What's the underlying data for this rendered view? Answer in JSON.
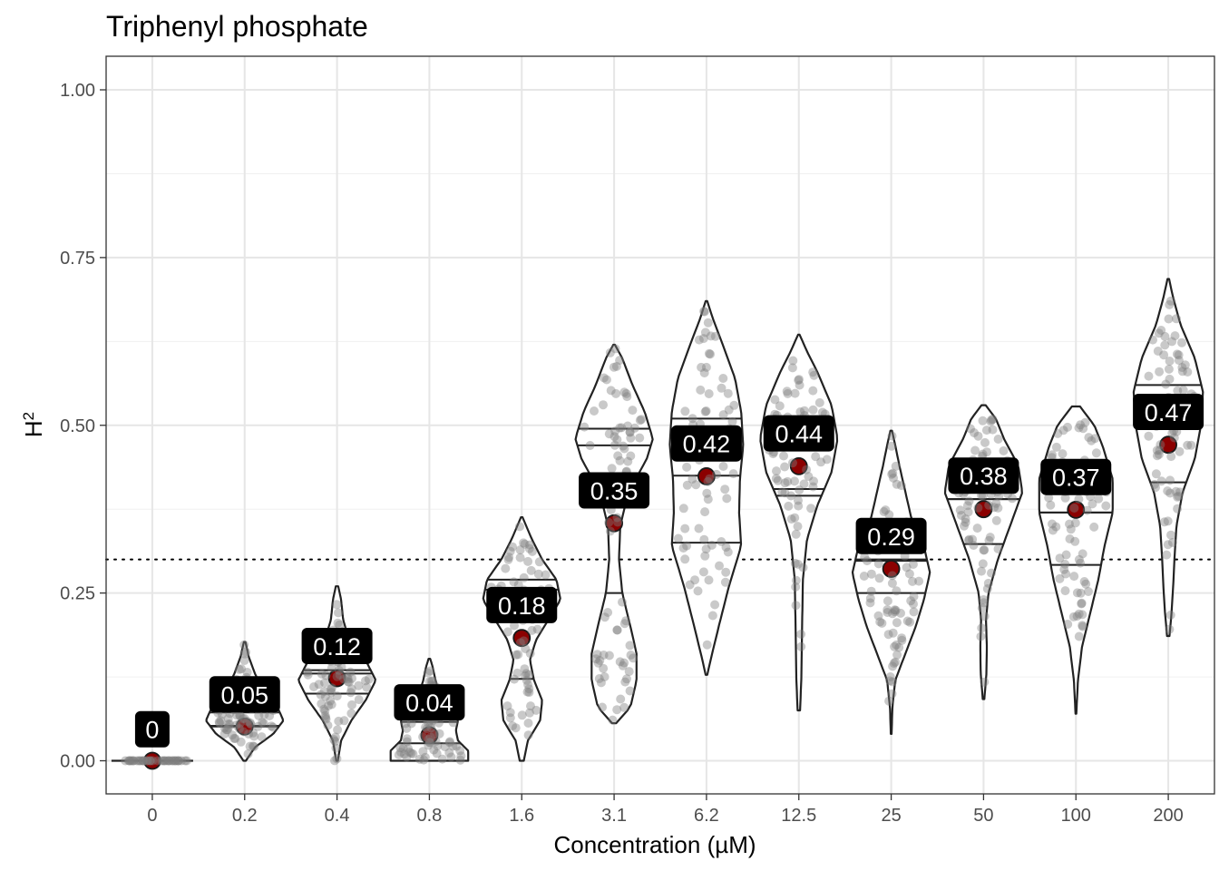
{
  "chart_data": {
    "type": "violin",
    "title": "Triphenyl phosphate",
    "xlabel": "Concentration (µM)",
    "ylabel_base": "H",
    "ylabel_sup": "2",
    "ylim": [
      -0.05,
      1.05
    ],
    "yticks": [
      0,
      0.25,
      0.5,
      0.75,
      1.0
    ],
    "ytick_labels": [
      "0.00",
      "0.25",
      "0.50",
      "0.75",
      "1.00"
    ],
    "threshold": 0.3,
    "categories": [
      "0",
      "0.2",
      "0.4",
      "0.8",
      "1.6",
      "3.1",
      "6.2",
      "12.5",
      "25",
      "50",
      "100",
      "200"
    ],
    "series": [
      {
        "name": "0",
        "min": 0,
        "max": 0,
        "q1": 0,
        "median": 0,
        "q3": 0,
        "mean": 0,
        "label": "0",
        "label_at": 0.047,
        "profile": [
          [
            0,
            1.0
          ]
        ]
      },
      {
        "name": "0.2",
        "min": 0.0,
        "max": 0.177,
        "q1": 0.051,
        "median": 0.052,
        "q3": 0.072,
        "mean": 0.051,
        "label": "0.05",
        "label_at": 0.099,
        "profile": [
          [
            0.0,
            0.03
          ],
          [
            0.02,
            0.25
          ],
          [
            0.04,
            0.7
          ],
          [
            0.06,
            0.95
          ],
          [
            0.08,
            0.8
          ],
          [
            0.1,
            0.5
          ],
          [
            0.13,
            0.25
          ],
          [
            0.155,
            0.1
          ],
          [
            0.177,
            0.02
          ]
        ]
      },
      {
        "name": "0.4",
        "min": 0.0,
        "max": 0.26,
        "q1": 0.1,
        "median": 0.13,
        "q3": 0.135,
        "mean": 0.123,
        "label": "0.12",
        "label_at": 0.171,
        "profile": [
          [
            0.0,
            0.02
          ],
          [
            0.03,
            0.1
          ],
          [
            0.06,
            0.35
          ],
          [
            0.09,
            0.7
          ],
          [
            0.12,
            0.95
          ],
          [
            0.15,
            0.7
          ],
          [
            0.18,
            0.3
          ],
          [
            0.21,
            0.15
          ],
          [
            0.24,
            0.1
          ],
          [
            0.26,
            0.03
          ]
        ]
      },
      {
        "name": "0.8",
        "min": 0.0,
        "max": 0.152,
        "q1": 0.0,
        "median": 0.026,
        "q3": 0.058,
        "mean": 0.038,
        "label": "0.04",
        "label_at": 0.087,
        "profile": [
          [
            0.0,
            0.95
          ],
          [
            0.015,
            0.95
          ],
          [
            0.03,
            0.7
          ],
          [
            0.045,
            0.65
          ],
          [
            0.06,
            0.7
          ],
          [
            0.08,
            0.5
          ],
          [
            0.1,
            0.25
          ],
          [
            0.12,
            0.15
          ],
          [
            0.14,
            0.08
          ],
          [
            0.152,
            0.02
          ]
        ]
      },
      {
        "name": "1.6",
        "min": 0.0,
        "max": 0.363,
        "q1": 0.122,
        "median": 0.255,
        "q3": 0.27,
        "mean": 0.183,
        "label": "0.18",
        "label_at": 0.232,
        "profile": [
          [
            0.0,
            0.05
          ],
          [
            0.03,
            0.15
          ],
          [
            0.06,
            0.45
          ],
          [
            0.09,
            0.5
          ],
          [
            0.12,
            0.3
          ],
          [
            0.15,
            0.2
          ],
          [
            0.18,
            0.35
          ],
          [
            0.21,
            0.65
          ],
          [
            0.24,
            0.95
          ],
          [
            0.27,
            0.85
          ],
          [
            0.3,
            0.5
          ],
          [
            0.33,
            0.25
          ],
          [
            0.363,
            0.02
          ]
        ]
      },
      {
        "name": "3.1",
        "min": 0.056,
        "max": 0.62,
        "q1": 0.25,
        "median": 0.47,
        "q3": 0.495,
        "mean": 0.354,
        "label": "0.35",
        "label_at": 0.403,
        "profile": [
          [
            0.056,
            0.05
          ],
          [
            0.08,
            0.4
          ],
          [
            0.12,
            0.55
          ],
          [
            0.16,
            0.55
          ],
          [
            0.2,
            0.4
          ],
          [
            0.25,
            0.2
          ],
          [
            0.3,
            0.12
          ],
          [
            0.35,
            0.15
          ],
          [
            0.4,
            0.35
          ],
          [
            0.45,
            0.8
          ],
          [
            0.48,
            0.95
          ],
          [
            0.52,
            0.75
          ],
          [
            0.56,
            0.45
          ],
          [
            0.6,
            0.2
          ],
          [
            0.62,
            0.02
          ]
        ]
      },
      {
        "name": "6.2",
        "min": 0.128,
        "max": 0.685,
        "q1": 0.325,
        "median": 0.425,
        "q3": 0.51,
        "mean": 0.424,
        "label": "0.42",
        "label_at": 0.473,
        "profile": [
          [
            0.128,
            0.02
          ],
          [
            0.15,
            0.1
          ],
          [
            0.2,
            0.3
          ],
          [
            0.26,
            0.55
          ],
          [
            0.32,
            0.85
          ],
          [
            0.37,
            0.8
          ],
          [
            0.42,
            0.82
          ],
          [
            0.47,
            0.9
          ],
          [
            0.52,
            0.85
          ],
          [
            0.57,
            0.7
          ],
          [
            0.62,
            0.4
          ],
          [
            0.66,
            0.15
          ],
          [
            0.685,
            0.02
          ]
        ]
      },
      {
        "name": "12.5",
        "min": 0.075,
        "max": 0.635,
        "q1": 0.395,
        "median": 0.405,
        "q3": 0.5,
        "mean": 0.439,
        "label": "0.44",
        "label_at": 0.488,
        "profile": [
          [
            0.075,
            0.03
          ],
          [
            0.12,
            0.06
          ],
          [
            0.2,
            0.08
          ],
          [
            0.27,
            0.1
          ],
          [
            0.33,
            0.2
          ],
          [
            0.38,
            0.45
          ],
          [
            0.43,
            0.8
          ],
          [
            0.48,
            0.95
          ],
          [
            0.53,
            0.8
          ],
          [
            0.58,
            0.45
          ],
          [
            0.61,
            0.2
          ],
          [
            0.635,
            0.02
          ]
        ]
      },
      {
        "name": "25",
        "min": 0.04,
        "max": 0.492,
        "q1": 0.25,
        "median": 0.298,
        "q3": 0.3,
        "mean": 0.286,
        "label": "0.29",
        "label_at": 0.335,
        "profile": [
          [
            0.04,
            0.01
          ],
          [
            0.08,
            0.03
          ],
          [
            0.12,
            0.1
          ],
          [
            0.16,
            0.35
          ],
          [
            0.2,
            0.6
          ],
          [
            0.24,
            0.8
          ],
          [
            0.28,
            0.95
          ],
          [
            0.32,
            0.8
          ],
          [
            0.36,
            0.5
          ],
          [
            0.4,
            0.35
          ],
          [
            0.44,
            0.2
          ],
          [
            0.47,
            0.1
          ],
          [
            0.492,
            0.02
          ]
        ]
      },
      {
        "name": "50",
        "min": 0.092,
        "max": 0.53,
        "q1": 0.323,
        "median": 0.39,
        "q3": 0.39,
        "mean": 0.375,
        "label": "0.38",
        "label_at": 0.425,
        "profile": [
          [
            0.092,
            0.02
          ],
          [
            0.13,
            0.07
          ],
          [
            0.17,
            0.08
          ],
          [
            0.21,
            0.06
          ],
          [
            0.25,
            0.12
          ],
          [
            0.3,
            0.35
          ],
          [
            0.35,
            0.65
          ],
          [
            0.4,
            0.95
          ],
          [
            0.44,
            0.85
          ],
          [
            0.48,
            0.5
          ],
          [
            0.51,
            0.3
          ],
          [
            0.53,
            0.05
          ]
        ]
      },
      {
        "name": "100",
        "min": 0.07,
        "max": 0.528,
        "q1": 0.292,
        "median": 0.37,
        "q3": 0.37,
        "mean": 0.374,
        "label": "0.37",
        "label_at": 0.423,
        "profile": [
          [
            0.07,
            0.01
          ],
          [
            0.12,
            0.05
          ],
          [
            0.17,
            0.15
          ],
          [
            0.22,
            0.35
          ],
          [
            0.27,
            0.55
          ],
          [
            0.32,
            0.7
          ],
          [
            0.37,
            0.9
          ],
          [
            0.42,
            0.9
          ],
          [
            0.47,
            0.65
          ],
          [
            0.5,
            0.45
          ],
          [
            0.528,
            0.1
          ]
        ]
      },
      {
        "name": "200",
        "min": 0.186,
        "max": 0.718,
        "q1": 0.415,
        "median": 0.495,
        "q3": 0.56,
        "mean": 0.471,
        "label": "0.47",
        "label_at": 0.52,
        "profile": [
          [
            0.186,
            0.03
          ],
          [
            0.22,
            0.08
          ],
          [
            0.26,
            0.12
          ],
          [
            0.3,
            0.15
          ],
          [
            0.35,
            0.2
          ],
          [
            0.4,
            0.35
          ],
          [
            0.45,
            0.65
          ],
          [
            0.5,
            0.8
          ],
          [
            0.55,
            0.85
          ],
          [
            0.6,
            0.65
          ],
          [
            0.65,
            0.3
          ],
          [
            0.69,
            0.12
          ],
          [
            0.718,
            0.02
          ]
        ]
      }
    ]
  }
}
